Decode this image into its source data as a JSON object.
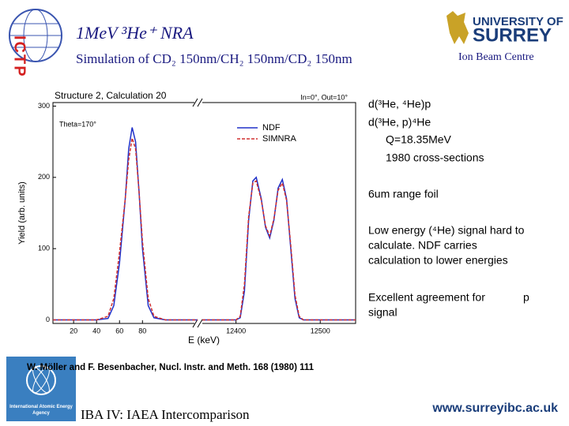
{
  "header": {
    "logo_left": "ICTP",
    "title": "1MeV ³He⁺ NRA",
    "subtitle": "Simulation of CD₂ 150nm/CH₂ 150nm/CD₂ 150nm",
    "logo_right_top": "UNIVERSITY OF",
    "logo_right_name": "SURREY",
    "logo_right_sub": "Ion Beam Centre"
  },
  "chart_data": [
    {
      "type": "line",
      "title": "Structure 2, Calculation 20",
      "annotations": [
        "Theta=170°",
        "In=0°, Out=10°"
      ],
      "ylabel": "Yield (arb. units)",
      "xlabel": "E (keV)",
      "legend": "upper right",
      "x": [
        2,
        40,
        50,
        55,
        60,
        65,
        68,
        71,
        74,
        77,
        80,
        85,
        90,
        100,
        128
      ],
      "series": [
        {
          "name": "NDF",
          "color": "#2030c8",
          "dash": false,
          "values": [
            0,
            0,
            2,
            20,
            80,
            170,
            240,
            270,
            250,
            180,
            100,
            20,
            3,
            0,
            0
          ]
        },
        {
          "name": "SIMNRA",
          "color": "#d03030",
          "dash": true,
          "values": [
            0,
            0,
            5,
            30,
            95,
            170,
            225,
            255,
            240,
            180,
            110,
            30,
            5,
            0,
            0
          ]
        }
      ],
      "xlim": [
        2,
        128
      ],
      "xticks": [
        20,
        40,
        60,
        80
      ],
      "ylim": [
        -5,
        305
      ],
      "yticks": [
        0,
        100,
        200,
        300
      ]
    },
    {
      "type": "line",
      "x": [
        12360,
        12400,
        12405,
        12410,
        12415,
        12420,
        12424,
        12430,
        12435,
        12440,
        12445,
        12450,
        12455,
        12460,
        12465,
        12470,
        12475,
        12480,
        12542
      ],
      "series": [
        {
          "color": "#2030c8",
          "dash": false,
          "values": [
            0,
            0,
            3,
            40,
            140,
            195,
            200,
            170,
            130,
            115,
            140,
            185,
            197,
            170,
            100,
            30,
            3,
            0,
            0
          ]
        },
        {
          "color": "#d03030",
          "dash": true,
          "values": [
            0,
            0,
            5,
            50,
            145,
            192,
            195,
            168,
            132,
            118,
            142,
            182,
            192,
            168,
            105,
            35,
            5,
            0,
            0
          ]
        }
      ],
      "xlim": [
        12360,
        12542
      ],
      "xticks": [
        12400,
        12500
      ],
      "ylim": [
        -5,
        305
      ]
    }
  ],
  "notes": [
    "d(³He, ⁴He)p",
    "d(³He, p)⁴He",
    "Q=18.35MeV",
    "1980 cross-sections",
    "6um range foil",
    "Low energy (⁴He) signal hard to",
    "calculate.  NDF carries",
    "calculation to lower energies",
    "Excellent agreement for",
    "p",
    "signal"
  ],
  "footer": {
    "citation": "W. Möller and F. Besenbacher, Nucl. Instr. and Meth. 168 (1980) 111",
    "iaea_logo": "International Atomic Energy Agency",
    "conference": "IBA IV:  IAEA Intercomparison",
    "url": "www.surreyibc.ac.uk"
  }
}
